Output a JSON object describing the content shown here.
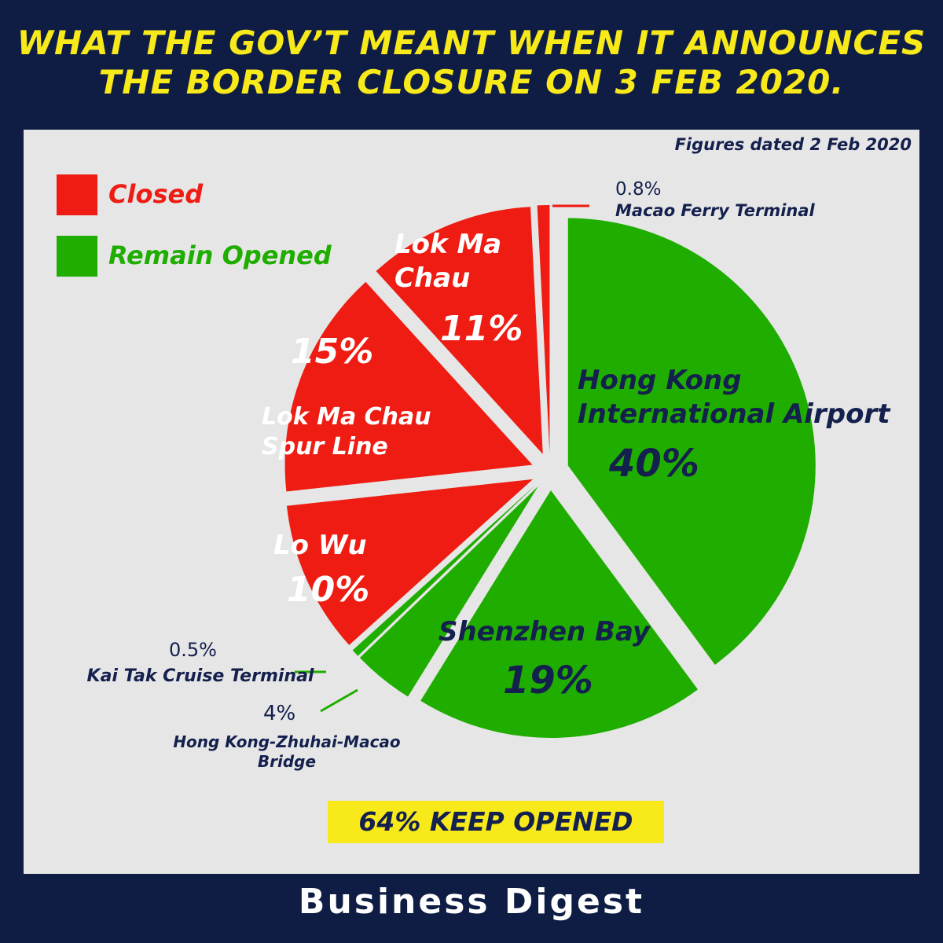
{
  "title": "WHAT THE GOV’T MEANT WHEN IT ANNOUNCES THE BORDER CLOSURE ON 3 FEB 2020.",
  "chart_data": {
    "type": "pie",
    "note": "Figures dated 2 Feb 2020",
    "categories": [
      "Hong Kong International Airport",
      "Shenzhen Bay",
      "Hong Kong-Zhuhai-Macao Bridge",
      "Kai Tak Cruise Terminal",
      "Lo Wu",
      "Lok Ma Chau Spur Line",
      "Lok Ma Chau",
      "Macao Ferry Terminal"
    ],
    "values": [
      40,
      19,
      4,
      0.5,
      10,
      15,
      11,
      0.8
    ],
    "value_labels": [
      "40%",
      "19%",
      "4%",
      "0.5%",
      "10%",
      "15%",
      "11%",
      "0.8%"
    ],
    "colors": [
      "#1fae00",
      "#1fae00",
      "#1fae00",
      "#1fae00",
      "#ee1c12",
      "#ee1c12",
      "#ee1c12",
      "#ee1c12"
    ],
    "legend": [
      {
        "name": "Closed",
        "color": "#ee1c12"
      },
      {
        "name": "Remain Opened",
        "color": "#1fae00"
      }
    ],
    "annotation": "64% KEEP OPENED"
  },
  "footer": "Business Digest"
}
